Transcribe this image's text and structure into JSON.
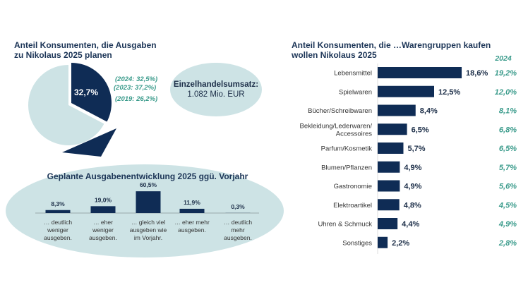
{
  "colors": {
    "navy": "#0f2c55",
    "light": "#cde3e5",
    "teal": "#3a9b8b"
  },
  "chart_data": [
    {
      "type": "pie",
      "title": [
        "Anteil Konsumenten, die Ausgaben",
        "zu Nikolaus 2025 planen"
      ],
      "values": [
        32.7,
        67.3
      ],
      "value_label": "32,7%",
      "comparisons": [
        "(2024: 32,5%)",
        "(2023: 37,2%)",
        "(2019:  26,2%)"
      ]
    },
    {
      "type": "callout",
      "title": "Einzelhandelsumsatz:",
      "value": "1.082 Mio. EUR"
    },
    {
      "type": "bar",
      "title": "Geplante Ausgabenentwicklung 2025 ggü. Vorjahr",
      "categories": [
        [
          "… deutlich",
          "weniger",
          "ausgeben."
        ],
        [
          "… eher",
          "weniger",
          "ausgeben."
        ],
        [
          "… gleich viel",
          "ausgeben wie",
          "im Vorjahr."
        ],
        [
          "… eher mehr",
          "ausgeben."
        ],
        [
          "… deutlich",
          "mehr",
          "ausgeben."
        ]
      ],
      "values": [
        8.3,
        19.0,
        60.5,
        11.9,
        0.3
      ],
      "labels": [
        "8,3%",
        "19,0%",
        "60,5%",
        "11,9%",
        "0,3%"
      ]
    },
    {
      "type": "bar",
      "orientation": "horizontal",
      "title": [
        "Anteil Konsumenten, die …Warengruppen kaufen",
        "wollen Nikolaus 2025"
      ],
      "comparison_header": "2024",
      "categories": [
        [
          "Lebensmittel"
        ],
        [
          "Spielwaren"
        ],
        [
          "Bücher/Schreibwaren"
        ],
        [
          "Bekleidung/Lederwaren/",
          "Accessoires"
        ],
        [
          "Parfum/Kosmetik"
        ],
        [
          "Blumen/Pflanzen"
        ],
        [
          "Gastronomie"
        ],
        [
          "Elektroartikel"
        ],
        [
          "Uhren & Schmuck"
        ],
        [
          "Sonstiges"
        ]
      ],
      "values": [
        18.6,
        12.5,
        8.4,
        6.5,
        5.7,
        4.9,
        4.9,
        4.8,
        4.4,
        2.2
      ],
      "labels": [
        "18,6%",
        "12,5%",
        "8,4%",
        "6,5%",
        "5,7%",
        "4,9%",
        "4,9%",
        "4,8%",
        "4,4%",
        "2,2%"
      ],
      "values_2024": [
        19.2,
        12.0,
        8.1,
        6.8,
        6.5,
        5.7,
        5.6,
        4.5,
        4.9,
        2.8
      ],
      "labels_2024": [
        "19,2%",
        "12,0%",
        "8,1%",
        "6,8%",
        "6,5%",
        "5,7%",
        "5,6%",
        "4,5%",
        "4,9%",
        "2,8%"
      ]
    }
  ]
}
